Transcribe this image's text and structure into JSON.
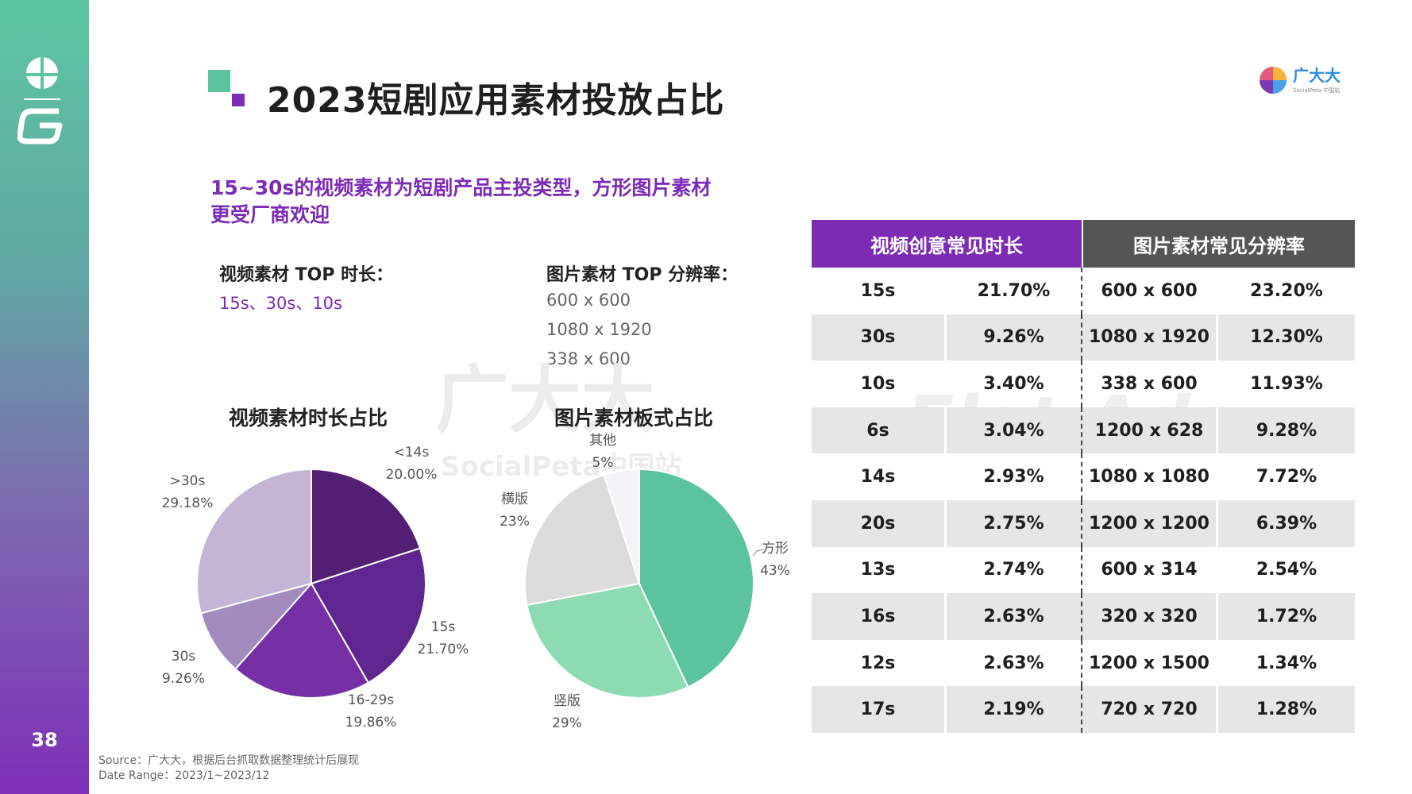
{
  "page": {
    "number": "38"
  },
  "header": {
    "title": "2023短剧应用素材投放占比"
  },
  "brand": {
    "name": "广大大",
    "sub": "SocialPeta 中国站"
  },
  "subtitle": "15~30s的视频素材为短剧产品主投类型，方形图片素材更受厂商欢迎",
  "video_top": {
    "label": "视频素材 TOP 时长：",
    "value": "15s、30s、10s"
  },
  "image_top": {
    "label": "图片素材 TOP 分辨率：",
    "values": [
      "600 x 600",
      "1080 x 1920",
      "338 x 600"
    ]
  },
  "watermarks": {
    "a": "广大大",
    "b": "SocialPeta中国站",
    "c": "Flat Ads"
  },
  "chart_data": [
    {
      "type": "pie",
      "title": "视频素材时长占比",
      "slices": [
        {
          "label": "<14s",
          "value": 20.0,
          "value_label": "20.00%",
          "color": "#521f74"
        },
        {
          "label": "15s",
          "value": 21.7,
          "value_label": "21.70%",
          "color": "#5f2690"
        },
        {
          "label": "16-29s",
          "value": 19.86,
          "value_label": "19.86%",
          "color": "#7430a4"
        },
        {
          "label": "30s",
          "value": 9.26,
          "value_label": "9.26%",
          "color": "#a38bbd"
        },
        {
          "label": ">30s",
          "value": 29.18,
          "value_label": "29.18%",
          "color": "#c4b4d5"
        }
      ]
    },
    {
      "type": "pie",
      "title": "图片素材板式占比",
      "slices": [
        {
          "label": "方形",
          "value": 43,
          "value_label": "43%",
          "color": "#5bc49c"
        },
        {
          "label": "竖版",
          "value": 29,
          "value_label": "29%",
          "color": "#8ddbb3"
        },
        {
          "label": "横版",
          "value": 23,
          "value_label": "23%",
          "color": "#dcdcdc"
        },
        {
          "label": "其他",
          "value": 5,
          "value_label": "5%",
          "color": "#f3f4f6"
        }
      ]
    }
  ],
  "table": {
    "headers": [
      "视频创意常见时长",
      "图片素材常见分辨率"
    ],
    "rows": [
      [
        "15s",
        "21.70%",
        "600 x 600",
        "23.20%"
      ],
      [
        "30s",
        "9.26%",
        "1080 x 1920",
        "12.30%"
      ],
      [
        "10s",
        "3.40%",
        "338 x 600",
        "11.93%"
      ],
      [
        "6s",
        "3.04%",
        "1200 x 628",
        "9.28%"
      ],
      [
        "14s",
        "2.93%",
        "1080 x 1080",
        "7.72%"
      ],
      [
        "20s",
        "2.75%",
        "1200 x 1200",
        "6.39%"
      ],
      [
        "13s",
        "2.74%",
        "600 x 314",
        "2.54%"
      ],
      [
        "16s",
        "2.63%",
        "320 x 320",
        "1.72%"
      ],
      [
        "12s",
        "2.63%",
        "1200 x 1500",
        "1.34%"
      ],
      [
        "17s",
        "2.19%",
        "720 x 720",
        "1.28%"
      ]
    ]
  },
  "footer": {
    "source": "Source：广大大，根据后台抓取数据整理统计后展现",
    "date_range": "Date Range：2023/1~2023/12"
  }
}
